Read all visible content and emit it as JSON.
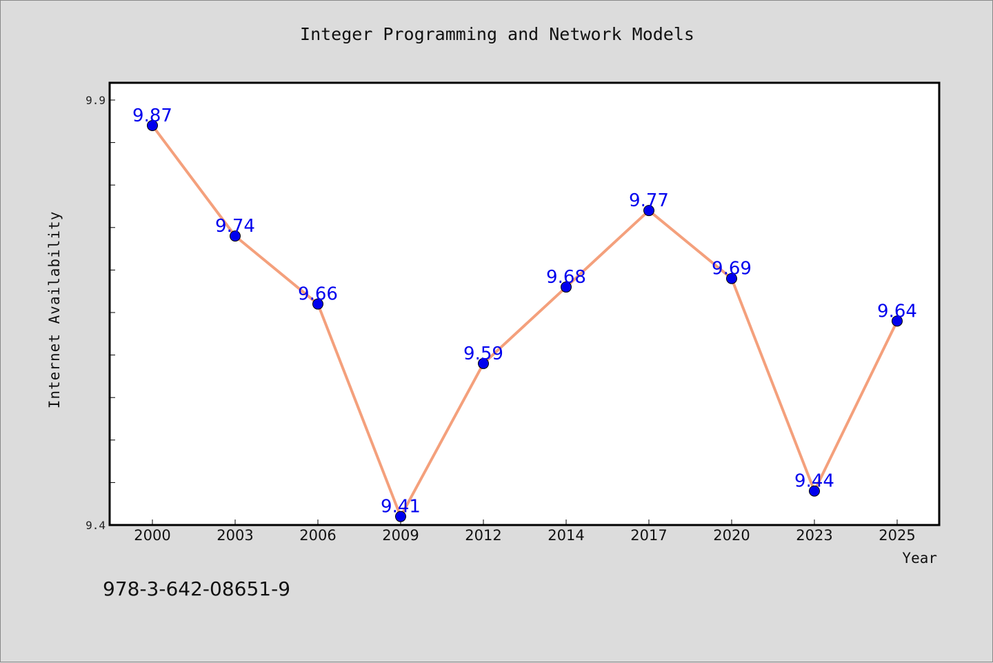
{
  "chart_data": {
    "type": "line",
    "title": "Integer Programming and Network Models",
    "xlabel": "Year",
    "ylabel": "Internet Availability",
    "categories": [
      "2000",
      "2003",
      "2006",
      "2009",
      "2012",
      "2014",
      "2017",
      "2020",
      "2023",
      "2025"
    ],
    "series": [
      {
        "values": [
          9.87,
          9.74,
          9.66,
          9.41,
          9.59,
          9.68,
          9.77,
          9.69,
          9.44,
          9.64
        ]
      }
    ],
    "ylim": [
      9.4,
      9.9
    ],
    "yticks": [
      "9.4",
      "9.9"
    ],
    "grid": false,
    "colors": {
      "line": "#f4a07c",
      "marker": "#0000ee",
      "label": "#0000ee"
    }
  },
  "footer_text": "978-3-642-08651-9"
}
